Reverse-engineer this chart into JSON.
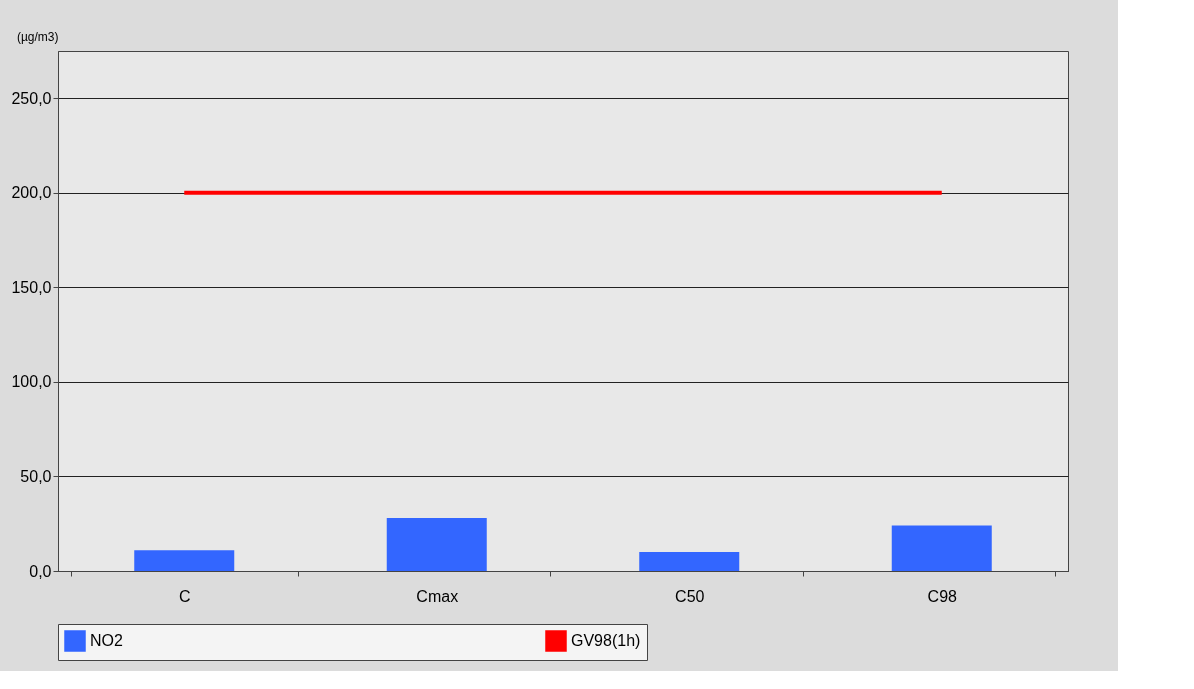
{
  "chart_data": {
    "type": "bar",
    "ylabel": "(µg/m3)",
    "categories": [
      "C",
      "Cmax",
      "C50",
      "C98"
    ],
    "series": [
      {
        "name": "NO2",
        "color": "#3366ff",
        "values": [
          11,
          28,
          10,
          24
        ]
      },
      {
        "name": "GV98(1h)",
        "type": "line",
        "color": "#ff0000",
        "values": [
          200,
          200,
          200,
          200
        ]
      }
    ],
    "ylim": [
      0,
      275
    ],
    "yticks": [
      {
        "value": 0,
        "label": "0,0"
      },
      {
        "value": 50,
        "label": "50,0"
      },
      {
        "value": 100,
        "label": "100,0"
      },
      {
        "value": 150,
        "label": "150,0"
      },
      {
        "value": 200,
        "label": "200,0"
      },
      {
        "value": 250,
        "label": "250,0"
      }
    ],
    "grid": "y",
    "legend": "bottom",
    "marker": "none"
  }
}
